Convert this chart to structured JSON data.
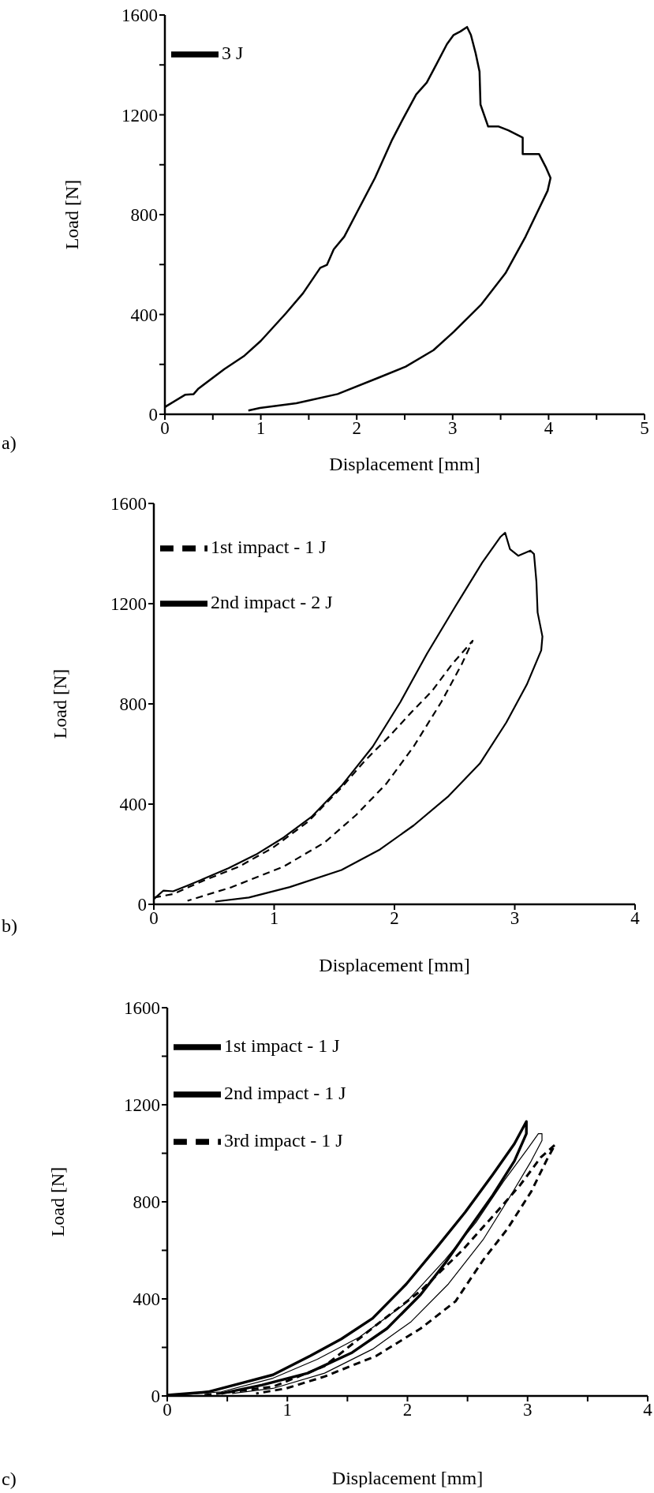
{
  "chart_data": [
    {
      "type": "line",
      "xlabel": "Displacement [mm]",
      "ylabel": "Load [N]",
      "annotations": [
        "a)"
      ],
      "legend": "top left",
      "xlim": [
        0,
        5
      ],
      "xticks": [
        0,
        {
          "value": 0.5,
          "label": null
        },
        1,
        {
          "value": 1.5,
          "label": null
        },
        2,
        {
          "value": 2.5,
          "label": null
        },
        3,
        {
          "value": 3.5,
          "label": null
        },
        4,
        {
          "value": 4.5,
          "label": null
        },
        5
      ],
      "ylim": [
        0,
        1600
      ],
      "yticks": [
        0,
        {
          "value": 200,
          "label": null
        },
        400,
        {
          "value": 600,
          "label": null
        },
        800,
        {
          "value": 1000,
          "label": null
        },
        1200,
        {
          "value": 1400,
          "label": null
        },
        1600
      ],
      "series": [
        {
          "name": "3 J",
          "color": "#000000",
          "line_style": "solid",
          "x": [
            0,
            0.21,
            0.3,
            0.35,
            0.62,
            0.83,
            1.0,
            1.26,
            1.44,
            1.62,
            1.69,
            1.76,
            1.87,
            2.01,
            2.19,
            2.37,
            2.48,
            2.62,
            2.73,
            2.83,
            2.94,
            3.01,
            3.08,
            3.15,
            3.19,
            3.24,
            3.28,
            3.29,
            3.37,
            3.48,
            3.58,
            3.73,
            3.73,
            3.9,
            3.97,
            4.02,
            3.99,
            3.76,
            3.55,
            3.3,
            3.01,
            2.8,
            2.51,
            2.23,
            1.8,
            1.37,
            0.99,
            0.87
          ],
          "values": [
            29,
            78,
            81,
            103,
            181,
            235,
            294,
            404,
            485,
            587,
            599,
            661,
            712,
            815,
            947,
            1101,
            1182,
            1282,
            1329,
            1402,
            1483,
            1520,
            1534,
            1552,
            1520,
            1446,
            1373,
            1241,
            1153,
            1153,
            1138,
            1109,
            1043,
            1043,
            991,
            947,
            896,
            712,
            565,
            441,
            330,
            257,
            191,
            147,
            81,
            44,
            25,
            15
          ]
        }
      ]
    },
    {
      "type": "line",
      "xlabel": "Displacement [mm]",
      "ylabel": "Load [N]",
      "annotations": [
        "b)"
      ],
      "legend": "top left",
      "xlim": [
        0,
        4
      ],
      "xticks": [
        0,
        1,
        2,
        3,
        4
      ],
      "ylim": [
        0,
        1600
      ],
      "yticks": [
        0,
        400,
        800,
        1200,
        1600
      ],
      "series": [
        {
          "name": "1st impact - 1 J",
          "color": "#000000",
          "line_style": "dashed",
          "x": [
            0,
            0.16,
            0.42,
            0.71,
            0.99,
            1.28,
            1.56,
            1.76,
            1.96,
            2.13,
            2.31,
            2.48,
            2.65,
            2.56,
            2.39,
            2.16,
            1.93,
            1.68,
            1.42,
            1.08,
            0.65,
            0.28
          ],
          "values": [
            27,
            41,
            96,
            151,
            226,
            329,
            466,
            576,
            672,
            761,
            850,
            959,
            1052,
            959,
            808,
            630,
            480,
            356,
            247,
            151,
            69,
            14
          ]
        },
        {
          "name": "2nd impact - 2 J",
          "color": "#000000",
          "line_style": "solid",
          "x": [
            0,
            0.08,
            0.16,
            0.28,
            0.42,
            0.62,
            0.85,
            1.08,
            1.31,
            1.56,
            1.82,
            2.05,
            2.27,
            2.51,
            2.73,
            2.88,
            2.92,
            2.96,
            3.03,
            3.13,
            3.16,
            3.18,
            3.19,
            3.23,
            3.22,
            3.1,
            2.93,
            2.71,
            2.45,
            2.16,
            1.88,
            1.56,
            1.13,
            0.79,
            0.51
          ],
          "values": [
            21,
            55,
            52,
            75,
            103,
            144,
            199,
            267,
            349,
            473,
            630,
            808,
            1000,
            1192,
            1364,
            1466,
            1483,
            1418,
            1391,
            1412,
            1398,
            1288,
            1165,
            1069,
            1014,
            877,
            726,
            562,
            432,
            315,
            219,
            137,
            69,
            27,
            11
          ]
        }
      ]
    },
    {
      "type": "line",
      "xlabel": "Displacement [mm]",
      "ylabel": "Load [N]",
      "annotations": [
        "c)"
      ],
      "legend": "top left",
      "xlim": [
        0,
        4
      ],
      "xticks": [
        0,
        {
          "value": 0.5,
          "label": null
        },
        1,
        {
          "value": 1.5,
          "label": null
        },
        2,
        {
          "value": 2.5,
          "label": null
        },
        3,
        {
          "value": 3.5,
          "label": null
        },
        4
      ],
      "ylim": [
        0,
        1600
      ],
      "yticks": [
        0,
        {
          "value": 200,
          "label": null
        },
        400,
        {
          "value": 600,
          "label": null
        },
        800,
        {
          "value": 1000,
          "label": null
        },
        1200,
        {
          "value": 1400,
          "label": null
        },
        1600
      ],
      "series": [
        {
          "name": "1st impact - 1 J",
          "color": "#000000",
          "line_style": "solid",
          "x": [
            0,
            0.34,
            0.59,
            0.88,
            1.19,
            1.45,
            1.71,
            1.99,
            2.25,
            2.48,
            2.71,
            2.89,
            2.99,
            2.99,
            2.89,
            2.71,
            2.51,
            2.31,
            2.11,
            1.83,
            1.54,
            1.17,
            0.79,
            0.45
          ],
          "values": [
            3,
            17,
            49,
            87,
            165,
            235,
            320,
            461,
            616,
            757,
            912,
            1039,
            1131,
            1081,
            968,
            827,
            687,
            545,
            418,
            278,
            179,
            94,
            45,
            10
          ]
        },
        {
          "name": "2nd impact - 1 J",
          "color": "#000000",
          "line_style": "solid",
          "x": [
            0,
            0.45,
            0.88,
            1.25,
            1.6,
            1.97,
            2.31,
            2.57,
            2.8,
            3.0,
            3.09,
            3.12,
            3.12,
            3.03,
            2.86,
            2.63,
            2.34,
            2.03,
            1.71,
            1.31,
            0.88,
            0.54
          ],
          "values": [
            0,
            17,
            73,
            151,
            242,
            376,
            560,
            715,
            884,
            1018,
            1081,
            1081,
            1053,
            968,
            827,
            644,
            461,
            306,
            193,
            94,
            31,
            10
          ]
        },
        {
          "name": "3rd impact - 1 J",
          "color": "#000000",
          "line_style": "dashed",
          "x": [
            0.31,
            0.88,
            1.31,
            1.74,
            2.11,
            2.46,
            2.74,
            2.94,
            3.11,
            3.23,
            3.17,
            3.03,
            2.83,
            2.63,
            2.4,
            2.11,
            1.74,
            1.31,
            0.99,
            0.74
          ],
          "values": [
            3,
            38,
            123,
            292,
            433,
            602,
            757,
            870,
            983,
            1036,
            983,
            842,
            687,
            560,
            390,
            278,
            165,
            80,
            31,
            10
          ]
        }
      ]
    }
  ]
}
